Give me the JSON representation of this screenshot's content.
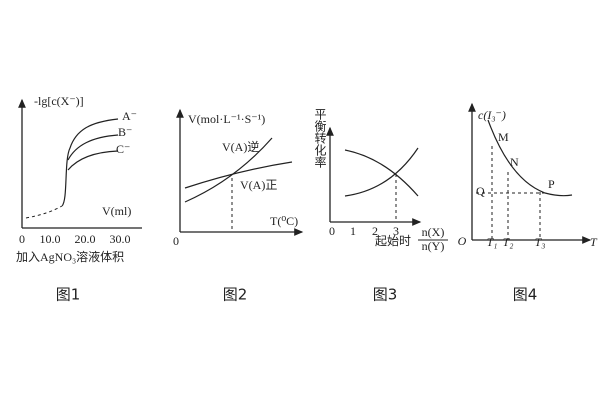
{
  "figures": [
    {
      "caption": "图1",
      "y_label": "-lg[c(X⁻)]",
      "x_label": "V(ml)",
      "curve_labels": [
        "A⁻",
        "B⁻",
        "C⁻"
      ],
      "x_ticks": [
        "0",
        "10.0",
        "20.0",
        "30.0"
      ],
      "footnote": "加入AgNO₃溶液体积"
    },
    {
      "caption": "图2",
      "y_label": "V(mol·L⁻¹·S⁻¹)",
      "x_label": "T(⁰C)",
      "origin": "0",
      "curve_labels": [
        "V(A)逆",
        "V(A)正"
      ]
    },
    {
      "caption": "图3",
      "y_label": "平衡转化率",
      "x_ticks": [
        "0",
        "1",
        "2",
        "3"
      ],
      "x_label": "起始时",
      "ratio_numerator": "n(X)",
      "ratio_denominator": "n(Y)"
    },
    {
      "caption": "图4",
      "y_label": "c(I₃⁻)",
      "origin": "O",
      "x_label": "T",
      "point_labels": [
        "M",
        "N",
        "P",
        "Q"
      ],
      "x_ticks": [
        "T₁",
        "T₂",
        "T₃"
      ]
    }
  ]
}
